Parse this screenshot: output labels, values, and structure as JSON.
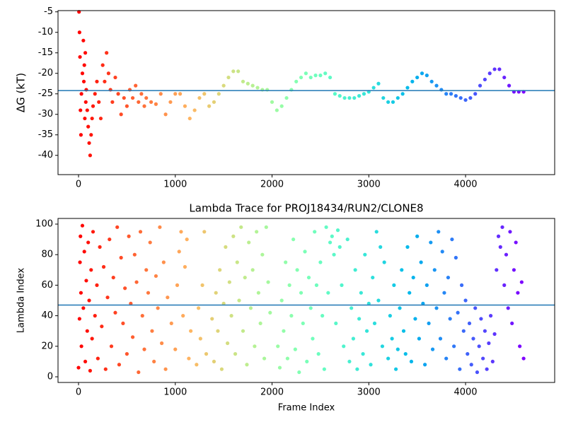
{
  "chart_data": [
    {
      "type": "scatter",
      "ylabel": "ΔG (kT)",
      "colormap": "rainbow_r",
      "hline": -24.2,
      "hline_color": "#1f77b4",
      "xlim": [
        -212,
        4921
      ],
      "ylim": [
        -44.7,
        -4.7
      ],
      "xticks": [
        0,
        1000,
        2000,
        3000,
        4000
      ],
      "yticks": [
        -40,
        -35,
        -30,
        -25,
        -20,
        -15,
        -10,
        -5
      ],
      "x": [
        5,
        10,
        15,
        20,
        25,
        30,
        40,
        50,
        55,
        60,
        65,
        70,
        75,
        80,
        90,
        100,
        110,
        120,
        130,
        140,
        150,
        170,
        190,
        210,
        230,
        250,
        270,
        290,
        310,
        330,
        350,
        380,
        410,
        440,
        470,
        500,
        530,
        560,
        590,
        620,
        650,
        680,
        700,
        750,
        800,
        850,
        900,
        950,
        1000,
        1050,
        1100,
        1150,
        1200,
        1250,
        1300,
        1350,
        1400,
        1450,
        1500,
        1550,
        1600,
        1650,
        1700,
        1750,
        1800,
        1850,
        1900,
        1950,
        2000,
        2050,
        2100,
        2150,
        2200,
        2250,
        2300,
        2350,
        2400,
        2450,
        2500,
        2550,
        2600,
        2650,
        2700,
        2750,
        2800,
        2850,
        2900,
        2950,
        3000,
        3050,
        3100,
        3150,
        3200,
        3250,
        3300,
        3350,
        3400,
        3450,
        3500,
        3550,
        3600,
        3650,
        3700,
        3750,
        3800,
        3850,
        3900,
        3950,
        4000,
        4050,
        4100,
        4150,
        4200,
        4250,
        4300,
        4350,
        4400,
        4450,
        4500,
        4550,
        4600
      ],
      "values": [
        -5,
        -10,
        -16,
        -29,
        -35,
        -25,
        -20,
        -12,
        -22,
        -18,
        -31,
        -15,
        -27,
        -24,
        -29,
        -33,
        -37,
        -40,
        -35,
        -31,
        -28,
        -25,
        -22,
        -27,
        -31,
        -18,
        -22,
        -15,
        -20,
        -24,
        -27,
        -21,
        -25,
        -30,
        -26,
        -28,
        -24,
        -26,
        -23,
        -27,
        -25,
        -28,
        -26,
        -27,
        -27.5,
        -25,
        -30,
        -27,
        -25,
        -25,
        -28,
        -31,
        -29,
        -26,
        -25,
        -28,
        -27,
        -25,
        -23,
        -21,
        -19.5,
        -19.5,
        -22,
        -22.5,
        -23,
        -23.5,
        -24,
        -24,
        -27,
        -29,
        -28,
        -26,
        -24,
        -22,
        -21,
        -20,
        -21,
        -20.5,
        -20.5,
        -20,
        -21,
        -25,
        -25.5,
        -26,
        -26,
        -26,
        -25.5,
        -25,
        -24.5,
        -23.5,
        -22.5,
        -26,
        -27,
        -27,
        -26,
        -25,
        -23.5,
        -22,
        -21,
        -20,
        -20.5,
        -22,
        -23,
        -24,
        -25,
        -25,
        -25.5,
        -26,
        -26.5,
        -26,
        -25,
        -23,
        -21.5,
        -20,
        -19,
        -19,
        -21,
        -23,
        -24.5,
        -24.5,
        -24.5
      ]
    },
    {
      "type": "scatter",
      "title": "Lambda Trace for PROJ18434/RUN2/CLONE8",
      "xlabel": "Frame Index",
      "ylabel": "Lambda Index",
      "colormap": "rainbow_r",
      "hline": 47,
      "hline_color": "#1f77b4",
      "xlim": [
        -212,
        4921
      ],
      "ylim": [
        -3.7,
        103.7
      ],
      "xticks": [
        0,
        1000,
        2000,
        3000,
        4000
      ],
      "yticks": [
        0,
        20,
        40,
        60,
        80,
        100
      ],
      "x": [
        0,
        10,
        15,
        20,
        25,
        30,
        40,
        50,
        60,
        70,
        80,
        90,
        100,
        110,
        120,
        130,
        140,
        150,
        170,
        190,
        200,
        220,
        240,
        260,
        280,
        300,
        320,
        340,
        360,
        380,
        400,
        420,
        440,
        460,
        480,
        500,
        520,
        540,
        560,
        580,
        600,
        620,
        640,
        660,
        680,
        700,
        720,
        740,
        760,
        780,
        800,
        820,
        840,
        860,
        880,
        900,
        920,
        960,
        1000,
        1020,
        1040,
        1060,
        1080,
        1100,
        1120,
        1140,
        1160,
        1220,
        1240,
        1260,
        1280,
        1300,
        1320,
        1380,
        1400,
        1420,
        1440,
        1460,
        1480,
        1500,
        1520,
        1540,
        1560,
        1580,
        1600,
        1620,
        1640,
        1660,
        1680,
        1700,
        1720,
        1740,
        1760,
        1780,
        1800,
        1820,
        1840,
        1860,
        1880,
        1900,
        1920,
        1940,
        1960,
        1980,
        2060,
        2080,
        2100,
        2120,
        2140,
        2160,
        2180,
        2200,
        2220,
        2240,
        2260,
        2280,
        2300,
        2320,
        2340,
        2360,
        2380,
        2400,
        2420,
        2440,
        2460,
        2480,
        2500,
        2520,
        2540,
        2560,
        2580,
        2600,
        2620,
        2640,
        2660,
        2680,
        2700,
        2720,
        2740,
        2780,
        2800,
        2820,
        2840,
        2860,
        2880,
        2900,
        2920,
        2940,
        2960,
        2980,
        3000,
        3020,
        3040,
        3060,
        3080,
        3100,
        3120,
        3140,
        3160,
        3200,
        3220,
        3240,
        3260,
        3280,
        3300,
        3320,
        3340,
        3360,
        3380,
        3400,
        3420,
        3440,
        3460,
        3480,
        3500,
        3520,
        3540,
        3560,
        3580,
        3600,
        3620,
        3640,
        3660,
        3680,
        3700,
        3720,
        3740,
        3760,
        3780,
        3800,
        3820,
        3840,
        3860,
        3880,
        3900,
        3920,
        3940,
        3960,
        3980,
        4000,
        4020,
        4040,
        4060,
        4080,
        4100,
        4120,
        4140,
        4160,
        4180,
        4200,
        4220,
        4240,
        4260,
        4280,
        4300,
        4320,
        4340,
        4360,
        4380,
        4400,
        4420,
        4440,
        4460,
        4480,
        4500,
        4520,
        4540,
        4560,
        4580,
        4600
      ],
      "values": [
        6,
        38,
        75,
        92,
        55,
        20,
        99,
        45,
        82,
        10,
        63,
        30,
        88,
        50,
        4,
        70,
        25,
        95,
        40,
        60,
        12,
        85,
        33,
        72,
        5,
        52,
        90,
        20,
        65,
        42,
        98,
        8,
        78,
        35,
        58,
        15,
        92,
        48,
        26,
        80,
        62,
        3,
        95,
        40,
        18,
        70,
        55,
        88,
        30,
        10,
        66,
        45,
        98,
        22,
        75,
        5,
        52,
        35,
        18,
        60,
        82,
        95,
        40,
        72,
        90,
        12,
        30,
        8,
        45,
        25,
        60,
        95,
        15,
        38,
        10,
        55,
        30,
        70,
        5,
        48,
        85,
        22,
        62,
        40,
        92,
        15,
        75,
        50,
        98,
        30,
        65,
        8,
        88,
        45,
        70,
        20,
        95,
        55,
        35,
        80,
        12,
        98,
        62,
        42,
        20,
        6,
        50,
        30,
        75,
        12,
        60,
        40,
        90,
        18,
        70,
        3,
        55,
        35,
        82,
        10,
        65,
        45,
        25,
        95,
        60,
        15,
        75,
        40,
        5,
        98,
        55,
        88,
        92,
        80,
        35,
        96,
        85,
        60,
        20,
        90,
        10,
        45,
        25,
        70,
        5,
        38,
        55,
        15,
        80,
        30,
        48,
        8,
        65,
        35,
        95,
        50,
        85,
        20,
        75,
        12,
        40,
        25,
        60,
        5,
        18,
        45,
        70,
        30,
        15,
        85,
        55,
        10,
        65,
        38,
        92,
        25,
        75,
        48,
        8,
        60,
        35,
        88,
        18,
        70,
        45,
        95,
        25,
        82,
        55,
        12,
        65,
        38,
        90,
        20,
        78,
        42,
        5,
        60,
        30,
        50,
        15,
        35,
        8,
        25,
        45,
        3,
        20,
        38,
        12,
        30,
        5,
        22,
        40,
        10,
        28,
        70,
        92,
        85,
        98,
        60,
        80,
        45,
        95,
        35,
        70,
        88,
        55,
        20,
        62,
        12
      ]
    }
  ]
}
